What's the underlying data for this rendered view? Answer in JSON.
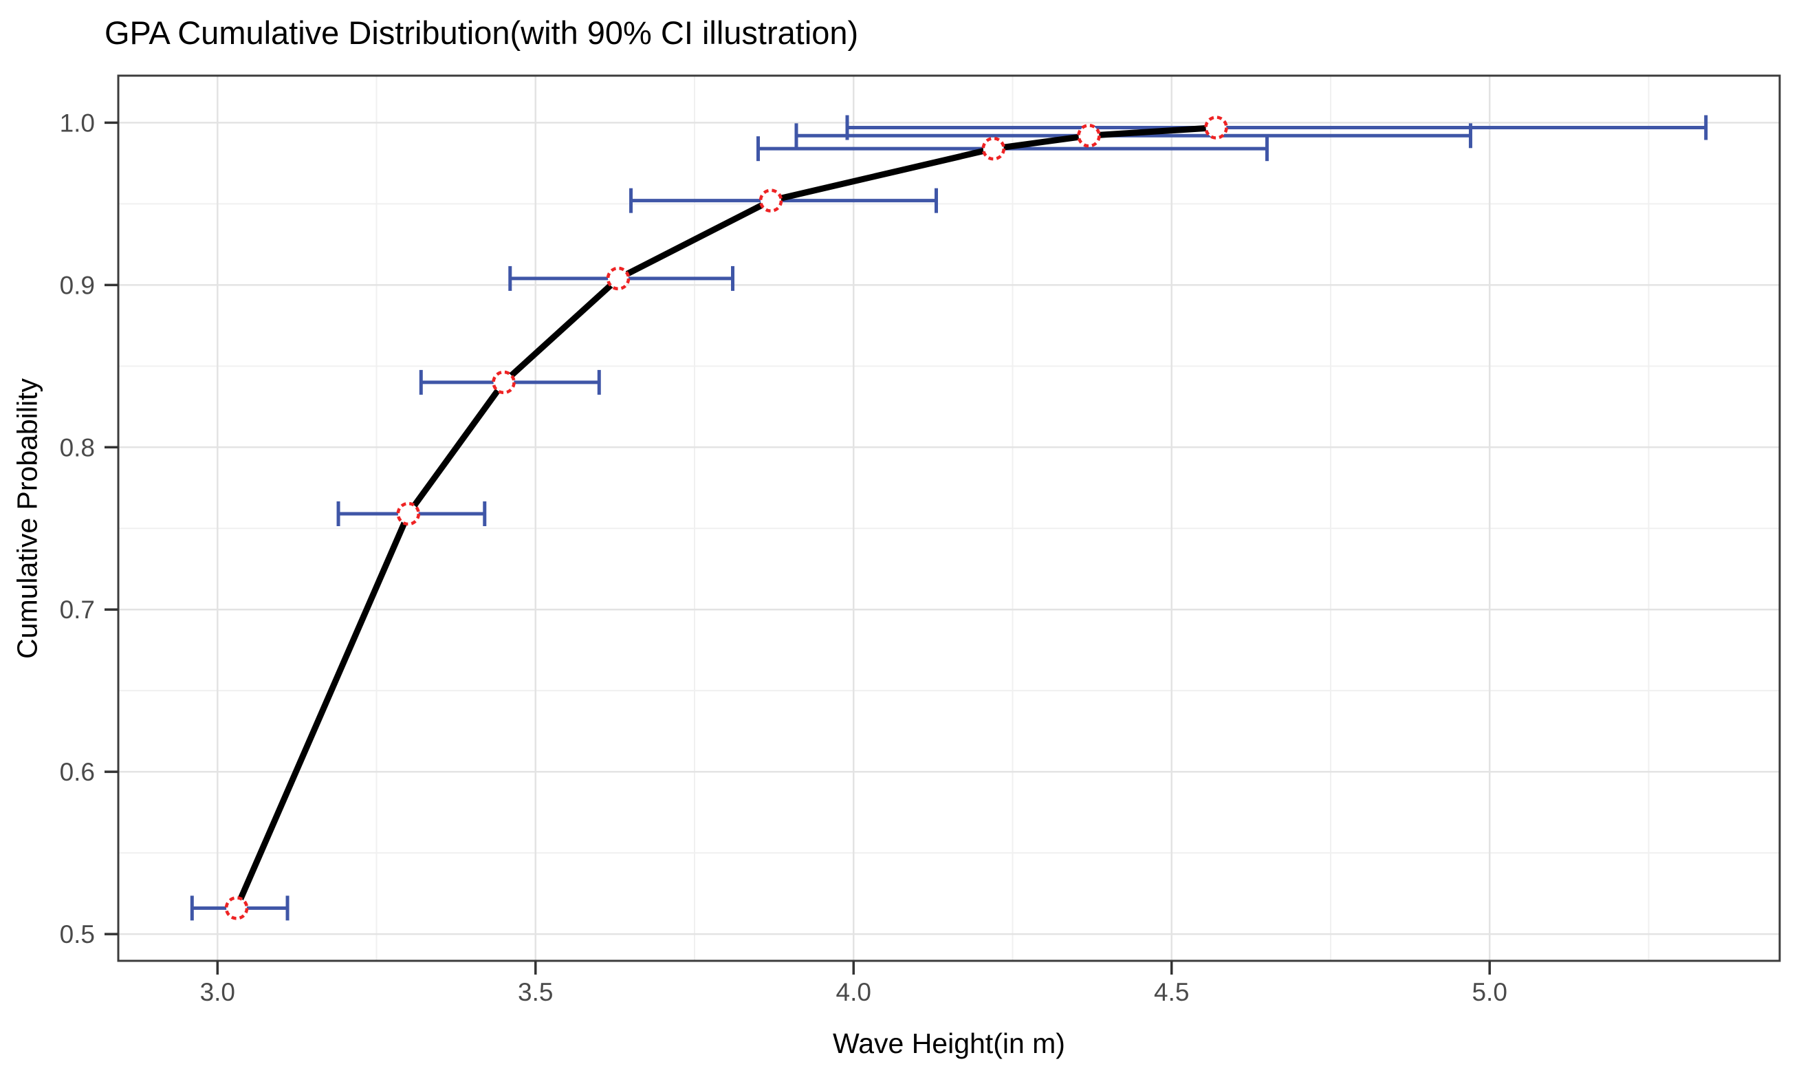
{
  "chart_data": {
    "type": "line",
    "title": "GPA Cumulative Distribution(with 90% CI illustration)",
    "xlabel": "Wave Height(in m)",
    "ylabel": "Cumulative Probability",
    "xlim": [
      2.844,
      5.456
    ],
    "ylim": [
      0.4835,
      1.029
    ],
    "grid": true,
    "legend_position": "none",
    "ci_level": "90%",
    "x_major_ticks": [
      {
        "value": 3.0,
        "label": "3.0"
      },
      {
        "value": 3.5,
        "label": "3.5"
      },
      {
        "value": 4.0,
        "label": "4.0"
      },
      {
        "value": 4.5,
        "label": "4.5"
      },
      {
        "value": 5.0,
        "label": "5.0"
      }
    ],
    "x_minor_ticks": [
      3.25,
      3.75,
      4.25,
      4.75,
      5.25
    ],
    "y_major_ticks": [
      {
        "value": 0.5,
        "label": "0.5"
      },
      {
        "value": 0.6,
        "label": "0.6"
      },
      {
        "value": 0.7,
        "label": "0.7"
      },
      {
        "value": 0.8,
        "label": "0.8"
      },
      {
        "value": 0.9,
        "label": "0.9"
      },
      {
        "value": 1.0,
        "label": "1.0"
      }
    ],
    "y_minor_ticks": [
      0.55,
      0.65,
      0.75,
      0.85,
      0.95
    ],
    "series": [
      {
        "name": "empirical-cdf-with-90pct-ci",
        "points": [
          {
            "x": 3.03,
            "y": 0.516,
            "ci_low": 2.96,
            "ci_high": 3.11
          },
          {
            "x": 3.3,
            "y": 0.759,
            "ci_low": 3.19,
            "ci_high": 3.42
          },
          {
            "x": 3.45,
            "y": 0.84,
            "ci_low": 3.32,
            "ci_high": 3.6
          },
          {
            "x": 3.63,
            "y": 0.904,
            "ci_low": 3.46,
            "ci_high": 3.81
          },
          {
            "x": 3.87,
            "y": 0.952,
            "ci_low": 3.65,
            "ci_high": 4.13
          },
          {
            "x": 4.22,
            "y": 0.984,
            "ci_low": 3.85,
            "ci_high": 4.65
          },
          {
            "x": 4.37,
            "y": 0.992,
            "ci_low": 3.91,
            "ci_high": 4.97
          },
          {
            "x": 4.57,
            "y": 0.997,
            "ci_low": 3.99,
            "ci_high": 5.34
          }
        ]
      }
    ],
    "colors": {
      "line": "#000000",
      "marker_stroke": "#ee2324",
      "marker_fill": "#ffffff",
      "error_bar": "#3f56a7",
      "grid_major": "#e3e3e3",
      "grid_minor": "#f0f0f0",
      "panel_border": "#3c3c3c",
      "axis_tick": "#333333",
      "tick_label": "#4a4a4a",
      "title": "#000000"
    }
  }
}
